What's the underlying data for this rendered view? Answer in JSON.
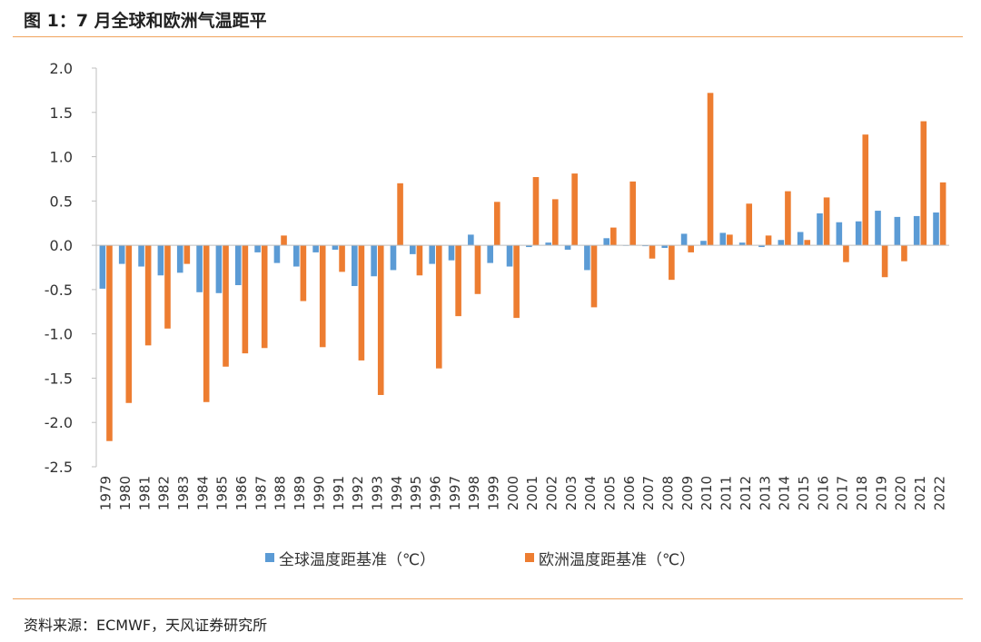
{
  "header": {
    "title": "图 1：7 月全球和欧洲气温距平"
  },
  "footer": {
    "source": "资料来源：ECMWF，天风证券研究所"
  },
  "colors": {
    "global": "#5b9bd5",
    "europe": "#ed7d31",
    "rule": "#f0a35c",
    "axis": "#bfbfbf"
  },
  "chart_data": {
    "type": "bar",
    "title": "",
    "xlabel": "",
    "ylabel": "",
    "ylim": [
      -2.5,
      2.0
    ],
    "yticks": [
      "2.0",
      "1.5",
      "1.0",
      "0.5",
      "0.0",
      "-0.5",
      "-1.0",
      "-1.5",
      "-2.0",
      "-2.5"
    ],
    "ytick_values": [
      2.0,
      1.5,
      1.0,
      0.5,
      0.0,
      -0.5,
      -1.0,
      -1.5,
      -2.0,
      -2.5
    ],
    "grid": false,
    "legend_position": "bottom",
    "categories": [
      "1979",
      "1980",
      "1981",
      "1982",
      "1983",
      "1984",
      "1985",
      "1986",
      "1987",
      "1988",
      "1989",
      "1990",
      "1991",
      "1992",
      "1993",
      "1994",
      "1995",
      "1996",
      "1997",
      "1998",
      "1999",
      "2000",
      "2001",
      "2002",
      "2003",
      "2004",
      "2005",
      "2006",
      "2007",
      "2008",
      "2009",
      "2010",
      "2011",
      "2012",
      "2013",
      "2014",
      "2015",
      "2016",
      "2017",
      "2018",
      "2019",
      "2020",
      "2021",
      "2022"
    ],
    "series": [
      {
        "name": "全球温度距基准（℃）",
        "values": [
          -0.49,
          -0.21,
          -0.24,
          -0.34,
          -0.31,
          -0.53,
          -0.54,
          -0.45,
          -0.08,
          -0.2,
          -0.24,
          -0.08,
          -0.05,
          -0.46,
          -0.35,
          -0.28,
          -0.1,
          -0.21,
          -0.17,
          0.12,
          -0.2,
          -0.24,
          -0.02,
          0.03,
          -0.05,
          -0.28,
          0.08,
          0.0,
          -0.01,
          -0.03,
          0.13,
          0.05,
          0.14,
          0.03,
          -0.02,
          0.06,
          0.15,
          0.36,
          0.26,
          0.27,
          0.39,
          0.32,
          0.33,
          0.37
        ]
      },
      {
        "name": "欧洲温度距基准（℃）",
        "values": [
          -2.21,
          -1.78,
          -1.13,
          -0.94,
          -0.21,
          -1.77,
          -1.37,
          -1.22,
          -1.16,
          0.11,
          -0.63,
          -1.15,
          -0.3,
          -1.3,
          -1.69,
          0.7,
          -0.34,
          -1.39,
          -0.8,
          -0.55,
          0.49,
          -0.82,
          0.77,
          0.52,
          0.81,
          -0.7,
          0.2,
          0.72,
          -0.15,
          -0.39,
          -0.08,
          1.72,
          0.12,
          0.47,
          0.11,
          0.61,
          0.06,
          0.54,
          -0.19,
          1.25,
          -0.36,
          -0.18,
          1.4,
          0.71
        ]
      }
    ]
  }
}
